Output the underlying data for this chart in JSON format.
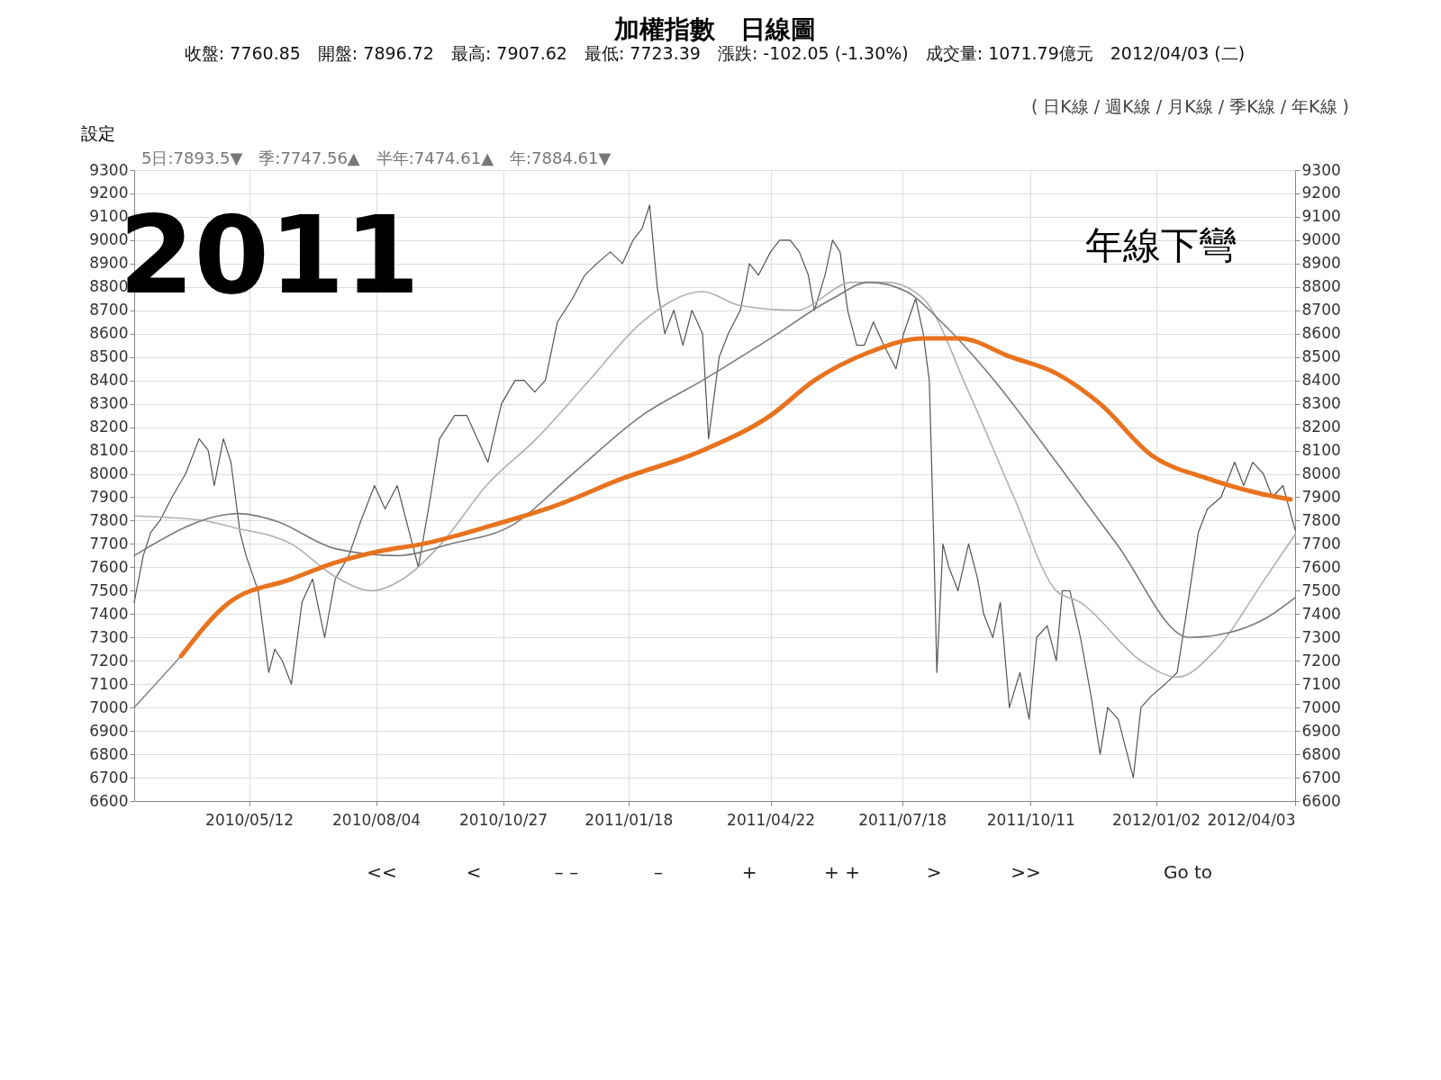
{
  "chart_data": {
    "type": "line",
    "title": "加權指數　日線圖",
    "subtitle": "收盤: 7760.85　開盤: 7896.72　最高: 7907.62　最低: 7723.39　漲跌: -102.05 (-1.30%)　成交量: 1071.79億元　2012/04/03 (二)",
    "annotations": [
      "( 日K線 / 週K線 / 月K線 / 季K線 / 年K線 )",
      "設定",
      "5日:7893.5▼　季:7747.56▲　半年:7474.61▲　年:7884.61▼",
      "2011",
      "年線下彎",
      "<<",
      "<",
      "– –",
      "–",
      "+",
      "+ +",
      ">",
      ">>",
      "Go to"
    ],
    "xlim": [
      "2010-02-25",
      "2012-04-03"
    ],
    "xticks": [
      {
        "value": "2010-05-12",
        "label": "2010/05/12"
      },
      {
        "value": "2010-08-04",
        "label": "2010/08/04"
      },
      {
        "value": "2010-10-27",
        "label": "2010/10/27"
      },
      {
        "value": "2011-01-18",
        "label": "2011/01/18"
      },
      {
        "value": "2011-04-22",
        "label": "2011/04/22"
      },
      {
        "value": "2011-07-18",
        "label": "2011/07/18"
      },
      {
        "value": "2011-10-11",
        "label": "2011/10/11"
      },
      {
        "value": "2012-01-02",
        "label": "2012/01/02"
      },
      {
        "value": "2012-04-03",
        "label": "2012/04/03"
      }
    ],
    "ylim": [
      6600,
      9300
    ],
    "yticks": [
      6600,
      6700,
      6800,
      6900,
      7000,
      7100,
      7200,
      7300,
      7400,
      7500,
      7600,
      7700,
      7800,
      7900,
      8000,
      8100,
      8200,
      8300,
      8400,
      8500,
      8600,
      8700,
      8800,
      8900,
      9000,
      9100,
      9200,
      9300
    ],
    "y2lim": [
      6600,
      9300
    ],
    "y2ticks": [
      6600,
      6700,
      6800,
      6900,
      7000,
      7100,
      7200,
      7300,
      7400,
      7500,
      7600,
      7700,
      7800,
      7900,
      8000,
      8100,
      8200,
      8300,
      8400,
      8500,
      8600,
      8700,
      8800,
      8900,
      9000,
      9100,
      9200,
      9300
    ],
    "grid": true,
    "series": [
      {
        "color": "#555555",
        "x": [
          "2010-02-25",
          "2010-03-03",
          "2010-03-08",
          "2010-03-14",
          "2010-03-22",
          "2010-03-31",
          "2010-04-09",
          "2010-04-15",
          "2010-04-19",
          "2010-04-25",
          "2010-04-30",
          "2010-05-06",
          "2010-05-10",
          "2010-05-18",
          "2010-05-25",
          "2010-05-29",
          "2010-06-03",
          "2010-06-09",
          "2010-06-16",
          "2010-06-23",
          "2010-07-01",
          "2010-07-08",
          "2010-07-17",
          "2010-07-25",
          "2010-08-03",
          "2010-08-10",
          "2010-08-18",
          "2010-08-26",
          "2010-09-01",
          "2010-09-09",
          "2010-09-15",
          "2010-09-25",
          "2010-10-03",
          "2010-10-10",
          "2010-10-17",
          "2010-10-26",
          "2010-11-04",
          "2010-11-10",
          "2010-11-17",
          "2010-11-24",
          "2010-12-02",
          "2010-12-12",
          "2010-12-20",
          "2010-12-28",
          "2011-01-06",
          "2011-01-14",
          "2011-01-21",
          "2011-01-27",
          "2011-02-01",
          "2011-02-06",
          "2011-02-11",
          "2011-02-17",
          "2011-02-23",
          "2011-03-01",
          "2011-03-08",
          "2011-03-12",
          "2011-03-19",
          "2011-03-25",
          "2011-04-02",
          "2011-04-08",
          "2011-04-14",
          "2011-04-22",
          "2011-04-28",
          "2011-05-05",
          "2011-05-11",
          "2011-05-17",
          "2011-05-21",
          "2011-05-28",
          "2011-06-02",
          "2011-06-07",
          "2011-06-12",
          "2011-06-18",
          "2011-06-23",
          "2011-06-29",
          "2011-07-06",
          "2011-07-14",
          "2011-07-19",
          "2011-07-27",
          "2011-08-01",
          "2011-08-05",
          "2011-08-08",
          "2011-08-10",
          "2011-08-14",
          "2011-08-18",
          "2011-08-24",
          "2011-08-31",
          "2011-09-06",
          "2011-09-10",
          "2011-09-16",
          "2011-09-21",
          "2011-09-27",
          "2011-10-04",
          "2011-10-10",
          "2011-10-15",
          "2011-10-22",
          "2011-10-28",
          "2011-11-01",
          "2011-11-06",
          "2011-11-13",
          "2011-11-20",
          "2011-11-26",
          "2011-12-01",
          "2011-12-08",
          "2011-12-14",
          "2011-12-18",
          "2011-12-23",
          "2011-12-30",
          "2012-01-08",
          "2012-01-16",
          "2012-01-22",
          "2012-01-30",
          "2012-02-05",
          "2012-02-14",
          "2012-02-23",
          "2012-02-29",
          "2012-03-06",
          "2012-03-13",
          "2012-03-19",
          "2012-03-26",
          "2012-04-03"
        ],
        "values": [
          7450,
          7650,
          7750,
          7800,
          7900,
          8000,
          8150,
          8100,
          7950,
          8150,
          8050,
          7750,
          7650,
          7500,
          7150,
          7250,
          7200,
          7100,
          7450,
          7550,
          7300,
          7550,
          7650,
          7800,
          7950,
          7850,
          7950,
          7750,
          7600,
          7900,
          8150,
          8250,
          8250,
          8150,
          8050,
          8300,
          8400,
          8400,
          8350,
          8400,
          8650,
          8750,
          8850,
          8900,
          8950,
          8900,
          9000,
          9050,
          9150,
          8800,
          8600,
          8700,
          8550,
          8700,
          8600,
          8150,
          8500,
          8600,
          8700,
          8900,
          8850,
          8950,
          9000,
          9000,
          8950,
          8850,
          8700,
          8850,
          9000,
          8950,
          8700,
          8550,
          8550,
          8650,
          8550,
          8450,
          8600,
          8750,
          8600,
          8400,
          7700,
          7150,
          7700,
          7600,
          7500,
          7700,
          7550,
          7400,
          7300,
          7450,
          7000,
          7150,
          6950,
          7300,
          7350,
          7200,
          7500,
          7500,
          7300,
          7050,
          6800,
          7000,
          6950,
          6800,
          6700,
          7000,
          7050,
          7100,
          7150,
          7400,
          7750,
          7850,
          7900,
          8050,
          7950,
          8050,
          8000,
          7900,
          7950,
          7760
        ]
      },
      {
        "color": "#b0b0b0",
        "x": [
          "2010-02-25",
          "2010-04-12",
          "2010-05-02",
          "2010-06-09",
          "2010-07-08",
          "2010-08-01",
          "2010-08-24",
          "2010-09-16",
          "2010-10-16",
          "2010-11-18",
          "2010-12-23",
          "2011-01-27",
          "2011-03-08",
          "2011-04-02",
          "2011-05-09",
          "2011-06-15",
          "2011-07-08",
          "2011-08-01",
          "2011-08-31",
          "2011-09-30",
          "2011-10-28",
          "2011-11-13",
          "2011-12-23",
          "2012-01-16",
          "2012-02-11",
          "2012-03-14",
          "2012-04-03"
        ],
        "values": [
          7820,
          7800,
          7770,
          7700,
          7560,
          7500,
          7560,
          7700,
          7950,
          8150,
          8400,
          8650,
          8780,
          8720,
          8700,
          8820,
          8820,
          8750,
          8350,
          7900,
          7500,
          7450,
          7200,
          7130,
          7250,
          7550,
          7740
        ]
      },
      {
        "color": "#7a7a7a",
        "x": [
          "2010-02-25",
          "2010-05-05",
          "2010-05-29",
          "2010-07-08",
          "2010-08-18",
          "2010-09-22",
          "2010-11-02",
          "2010-12-12",
          "2011-01-27",
          "2011-03-08",
          "2011-04-22",
          "2011-06-02",
          "2011-06-26",
          "2011-07-21",
          "2011-08-13",
          "2011-09-17",
          "2011-10-28",
          "2011-12-07",
          "2012-01-24",
          "2012-02-19",
          "2012-03-14",
          "2012-04-03"
        ],
        "values": [
          7650,
          7830,
          7800,
          7680,
          7650,
          7700,
          7780,
          8000,
          8250,
          8400,
          8580,
          8750,
          8820,
          8780,
          8650,
          8400,
          8050,
          7700,
          7300,
          7320,
          7380,
          7470
        ]
      },
      {
        "color": "#8c8c8c",
        "x": [
          "2010-02-25",
          "2010-03-28"
        ],
        "values": [
          7000,
          7220
        ]
      },
      {
        "color": "#e8731f",
        "x": [
          "2010-03-28",
          "2010-04-29",
          "2010-06-09",
          "2010-07-08",
          "2010-08-07",
          "2010-09-04",
          "2010-10-20",
          "2010-11-29",
          "2011-01-14",
          "2011-03-08",
          "2011-04-22",
          "2011-05-21",
          "2011-06-26",
          "2011-08-01",
          "2011-08-25",
          "2011-09-28",
          "2011-10-28",
          "2011-11-26",
          "2011-12-30",
          "2012-02-05",
          "2012-03-08",
          "2012-03-31"
        ],
        "values": [
          7220,
          7450,
          7550,
          7620,
          7670,
          7700,
          7780,
          7860,
          7980,
          8100,
          8250,
          8400,
          8520,
          8580,
          8580,
          8500,
          8430,
          8300,
          8080,
          7980,
          7920,
          7890
        ]
      }
    ]
  }
}
